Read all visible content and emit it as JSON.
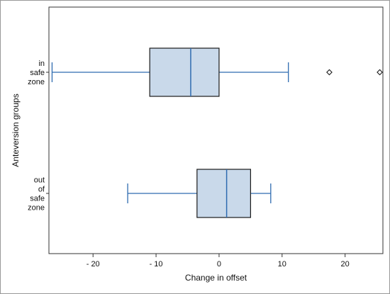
{
  "chart_data": {
    "type": "boxplot",
    "orientation": "horizontal",
    "xlabel": "Change in offset",
    "ylabel": "Anteversion groups",
    "xlim": [
      -27,
      26
    ],
    "xticks": [
      -20,
      -10,
      0,
      10,
      20
    ],
    "xtick_labels": [
      "- 20",
      "- 10",
      "0",
      "10",
      "20"
    ],
    "grid": false,
    "colors": {
      "box_fill": "#c9d9ea",
      "box_stroke": "#1a1a1a",
      "whisker": "#2e6bb0",
      "median": "#2e6bb0",
      "outlier": "#1a1a1a",
      "frame": "#333333"
    },
    "groups": [
      {
        "label_lines": [
          "in",
          "safe",
          "zone"
        ],
        "whisker_low": -26.5,
        "q1": -11,
        "median": -4.5,
        "q3": 0,
        "whisker_high": 11,
        "outliers": [
          17.5,
          25.5
        ]
      },
      {
        "label_lines": [
          "out",
          "of",
          "safe",
          "zone"
        ],
        "whisker_low": -14.5,
        "q1": -3.5,
        "median": 1.2,
        "q3": 5,
        "whisker_high": 8.2,
        "outliers": []
      }
    ]
  }
}
